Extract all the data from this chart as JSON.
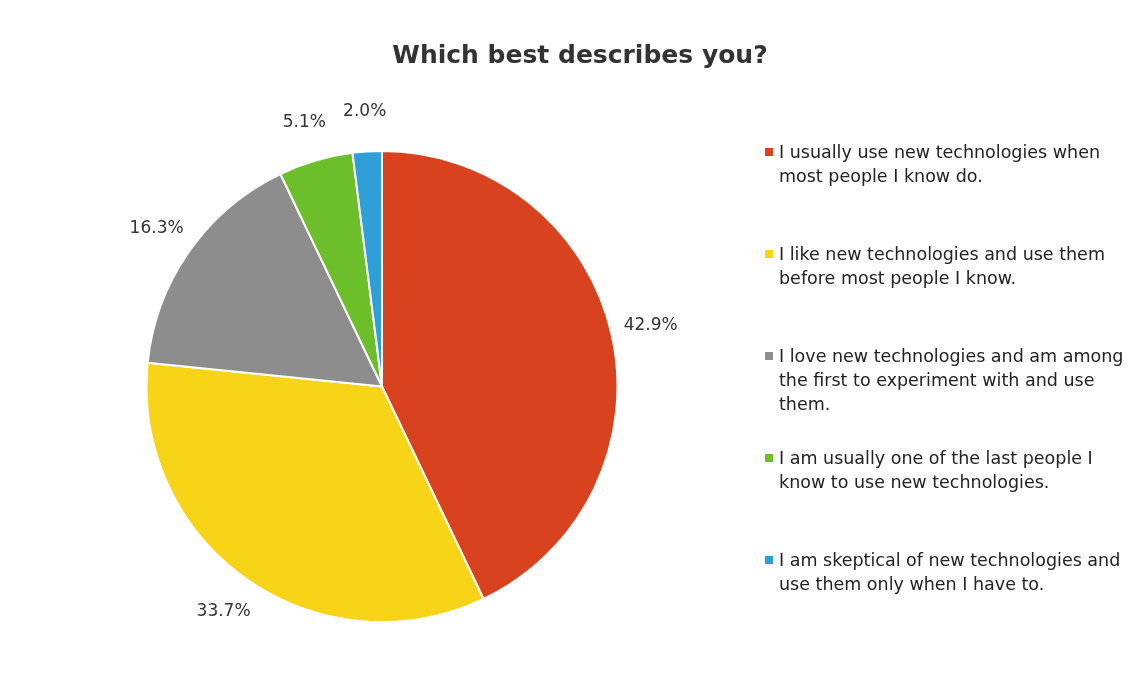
{
  "chart_data": {
    "type": "pie",
    "title": "Which best describes you?",
    "categories": [
      "I usually use new technologies when most people I know do.",
      "I like new technologies and use them before most people I know.",
      "I love new technologies and am among the first to experiment with and use them.",
      "I am usually one of the last people I know to use new technologies.",
      "I am skeptical of new technologies and use them only when I have to."
    ],
    "values": [
      42.9,
      33.7,
      16.3,
      5.1,
      2.0
    ],
    "value_labels": [
      "42.9%",
      "33.7%",
      "16.3%",
      "5.1%",
      "2.0%"
    ],
    "colors": [
      "#d9421e",
      "#f8d418",
      "#8d8d8d",
      "#6cbf2b",
      "#2f9fd8"
    ],
    "legend": "right"
  }
}
